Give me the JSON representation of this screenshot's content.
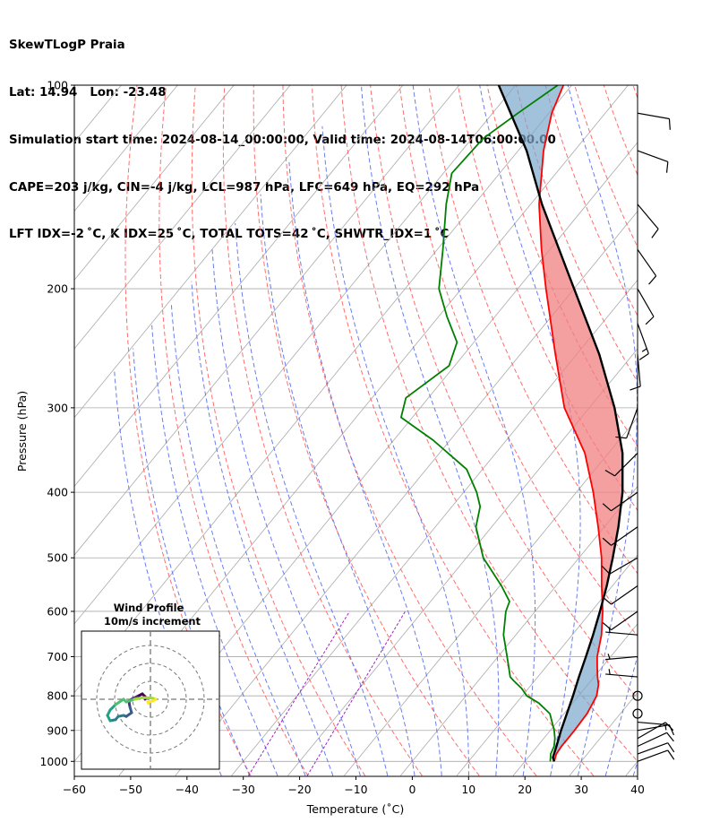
{
  "header": {
    "line1": "SkewTLogP Praia",
    "line2": "Lat: 14.94   Lon: -23.48",
    "line3": "Simulation start time: 2024-08-14_00:00:00, Valid time: 2024-08-14T06:00:00.00",
    "line4": "CAPE=203 j/kg, CIN=-4 j/kg, LCL=987 hPa, LFC=649 hPa, EQ=292 hPa",
    "line5": "LFT IDX=-2 ˚C, K IDX=25 ˚C, TOTAL TOTS=42 ˚C, SHWTR_IDX=1 ˚C"
  },
  "chart_data": {
    "type": "line",
    "subtype": "skew-T log-P diagram",
    "xlabel": "Temperature (˚C)",
    "ylabel": "Pressure (hPa)",
    "xlim": [
      -60,
      40
    ],
    "ylim": [
      1050,
      100
    ],
    "y_scale": "log",
    "x_ticks": [
      -60,
      -50,
      -40,
      -30,
      -20,
      -10,
      0,
      10,
      20,
      30,
      40
    ],
    "x_tick_labels": [
      "−60",
      "−50",
      "−40",
      "−30",
      "−20",
      "−10",
      "0",
      "10",
      "20",
      "30",
      "40"
    ],
    "y_ticks": [
      1000,
      900,
      800,
      700,
      600,
      500,
      400,
      300,
      200,
      100
    ],
    "y_tick_labels": [
      "1000",
      "900",
      "800",
      "700",
      "600",
      "500",
      "400",
      "300",
      "200",
      "100"
    ],
    "grid": true,
    "colors": {
      "temperature": "#ff0000",
      "dewpoint": "#008000",
      "parcel": "#000000",
      "cape_fill": "#f08080",
      "cin_fill": "#7ba7cc",
      "dry_adiabats": "#ff5555",
      "moist_adiabats": "#4f66ee",
      "mixing_ratio": "#a020c0",
      "isotherms": "#aaaaaa"
    },
    "series": [],
    "temperature_profile": [
      {
        "p": 1000,
        "t": 25.2
      },
      {
        "p": 975,
        "t": 24.5
      },
      {
        "p": 950,
        "t": 24.3
      },
      {
        "p": 925,
        "t": 24.3
      },
      {
        "p": 900,
        "t": 24.3
      },
      {
        "p": 850,
        "t": 24.1
      },
      {
        "p": 800,
        "t": 23.2
      },
      {
        "p": 770,
        "t": 21.9
      },
      {
        "p": 750,
        "t": 20.6
      },
      {
        "p": 720,
        "t": 18.8
      },
      {
        "p": 700,
        "t": 17.6
      },
      {
        "p": 650,
        "t": 15.2
      },
      {
        "p": 600,
        "t": 12.0
      },
      {
        "p": 550,
        "t": 8.1
      },
      {
        "p": 500,
        "t": 4.0
      },
      {
        "p": 450,
        "t": -1.1
      },
      {
        "p": 400,
        "t": -7.0
      },
      {
        "p": 350,
        "t": -14.2
      },
      {
        "p": 300,
        "t": -24.4
      },
      {
        "p": 250,
        "t": -33.8
      },
      {
        "p": 200,
        "t": -45.0
      },
      {
        "p": 175,
        "t": -51.5
      },
      {
        "p": 150,
        "t": -58.5
      },
      {
        "p": 125,
        "t": -65.5
      },
      {
        "p": 110,
        "t": -69.5
      },
      {
        "p": 100,
        "t": -71.5
      }
    ],
    "dewpoint_profile": [
      {
        "p": 1000,
        "t": 24.5
      },
      {
        "p": 975,
        "t": 23.5
      },
      {
        "p": 950,
        "t": 23.0
      },
      {
        "p": 925,
        "t": 22.0
      },
      {
        "p": 900,
        "t": 20.7
      },
      {
        "p": 850,
        "t": 17.5
      },
      {
        "p": 820,
        "t": 14.0
      },
      {
        "p": 800,
        "t": 10.8
      },
      {
        "p": 780,
        "t": 8.8
      },
      {
        "p": 760,
        "t": 6.3
      },
      {
        "p": 750,
        "t": 5.1
      },
      {
        "p": 700,
        "t": 1.6
      },
      {
        "p": 650,
        "t": -2.2
      },
      {
        "p": 600,
        "t": -5.2
      },
      {
        "p": 580,
        "t": -6.0
      },
      {
        "p": 550,
        "t": -9.7
      },
      {
        "p": 500,
        "t": -17.0
      },
      {
        "p": 450,
        "t": -22.8
      },
      {
        "p": 420,
        "t": -25.0
      },
      {
        "p": 400,
        "t": -27.7
      },
      {
        "p": 370,
        "t": -32.8
      },
      {
        "p": 335,
        "t": -43.0
      },
      {
        "p": 310,
        "t": -52.0
      },
      {
        "p": 290,
        "t": -54.0
      },
      {
        "p": 260,
        "t": -51.0
      },
      {
        "p": 240,
        "t": -53.0
      },
      {
        "p": 220,
        "t": -58.5
      },
      {
        "p": 200,
        "t": -64.0
      },
      {
        "p": 175,
        "t": -69.0
      },
      {
        "p": 150,
        "t": -75.0
      },
      {
        "p": 135,
        "t": -78.5
      },
      {
        "p": 120,
        "t": -78.0
      },
      {
        "p": 110,
        "t": -75.5
      },
      {
        "p": 100,
        "t": -72.5
      }
    ],
    "parcel_profile": [
      {
        "p": 1000,
        "t": 25.2
      },
      {
        "p": 987,
        "t": 24.4
      },
      {
        "p": 950,
        "t": 23.4
      },
      {
        "p": 900,
        "t": 21.9
      },
      {
        "p": 850,
        "t": 20.5
      },
      {
        "p": 800,
        "t": 19.0
      },
      {
        "p": 750,
        "t": 17.3
      },
      {
        "p": 700,
        "t": 15.6
      },
      {
        "p": 650,
        "t": 13.7
      },
      {
        "p": 600,
        "t": 11.5
      },
      {
        "p": 550,
        "t": 9.0
      },
      {
        "p": 500,
        "t": 6.0
      },
      {
        "p": 450,
        "t": 2.5
      },
      {
        "p": 400,
        "t": -1.8
      },
      {
        "p": 350,
        "t": -7.5
      },
      {
        "p": 300,
        "t": -15.5
      },
      {
        "p": 250,
        "t": -26.0
      },
      {
        "p": 200,
        "t": -40.0
      },
      {
        "p": 150,
        "t": -58.0
      },
      {
        "p": 125,
        "t": -68.5
      },
      {
        "p": 100,
        "t": -83.0
      }
    ],
    "wind_barbs": [
      {
        "p": 1000,
        "speed_kt": 10,
        "dir_deg": 70
      },
      {
        "p": 975,
        "speed_kt": 10,
        "dir_deg": 70
      },
      {
        "p": 950,
        "speed_kt": 10,
        "dir_deg": 65
      },
      {
        "p": 925,
        "speed_kt": 10,
        "dir_deg": 60
      },
      {
        "p": 900,
        "speed_kt": 10,
        "dir_deg": 80
      },
      {
        "p": 875,
        "speed_kt": 5,
        "dir_deg": 95
      },
      {
        "p": 850,
        "speed_kt": 0,
        "dir_deg": 0
      },
      {
        "p": 800,
        "speed_kt": 0,
        "dir_deg": 0
      },
      {
        "p": 750,
        "speed_kt": 5,
        "dir_deg": 275
      },
      {
        "p": 700,
        "speed_kt": 5,
        "dir_deg": 265
      },
      {
        "p": 650,
        "speed_kt": 5,
        "dir_deg": 275
      },
      {
        "p": 600,
        "speed_kt": 10,
        "dir_deg": 235
      },
      {
        "p": 550,
        "speed_kt": 10,
        "dir_deg": 235
      },
      {
        "p": 500,
        "speed_kt": 10,
        "dir_deg": 240
      },
      {
        "p": 450,
        "speed_kt": 10,
        "dir_deg": 235
      },
      {
        "p": 400,
        "speed_kt": 10,
        "dir_deg": 235
      },
      {
        "p": 350,
        "speed_kt": 10,
        "dir_deg": 225
      },
      {
        "p": 300,
        "speed_kt": 10,
        "dir_deg": 200
      },
      {
        "p": 250,
        "speed_kt": 10,
        "dir_deg": 175
      },
      {
        "p": 225,
        "speed_kt": 15,
        "dir_deg": 160
      },
      {
        "p": 200,
        "speed_kt": 10,
        "dir_deg": 150
      },
      {
        "p": 175,
        "speed_kt": 10,
        "dir_deg": 145
      },
      {
        "p": 150,
        "speed_kt": 10,
        "dir_deg": 140
      },
      {
        "p": 125,
        "speed_kt": 10,
        "dir_deg": 110
      },
      {
        "p": 110,
        "speed_kt": 10,
        "dir_deg": 100
      }
    ]
  },
  "inset": {
    "title_line1": "Wind Profile",
    "title_line2": "10m/s increment",
    "hodograph_points": [
      [
        -1.0,
        0.0
      ],
      [
        -1.0,
        0.5
      ],
      [
        -1.5,
        1.0
      ],
      [
        -2.5,
        0.5
      ],
      [
        -3.5,
        0.0
      ],
      [
        -4.0,
        -0.5
      ],
      [
        -3.8,
        -1.5
      ],
      [
        -3.5,
        -2.5
      ],
      [
        -4.5,
        -3.2
      ],
      [
        -5.0,
        -3.0
      ],
      [
        -6.0,
        -3.2
      ],
      [
        -6.5,
        -3.8
      ],
      [
        -7.5,
        -4.0
      ],
      [
        -8.0,
        -3.0
      ],
      [
        -7.5,
        -2.0
      ],
      [
        -6.5,
        -1.0
      ],
      [
        -5.0,
        0.0
      ],
      [
        -4.5,
        -0.5
      ],
      [
        -3.0,
        0.0
      ],
      [
        -1.5,
        0.3
      ],
      [
        0.0,
        0.3
      ],
      [
        1.0,
        0.0
      ],
      [
        0.5,
        -0.3
      ],
      [
        -0.5,
        -0.5
      ],
      [
        -0.3,
        -0.8
      ]
    ]
  }
}
